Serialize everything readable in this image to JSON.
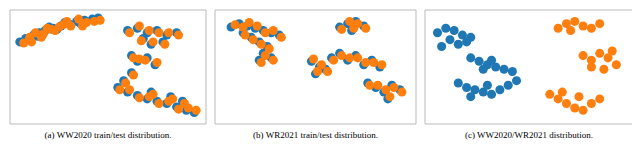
{
  "chart_data": [
    {
      "type": "scatter",
      "title": "(a) WW2020 train/test distribution.",
      "xlim": [
        0,
        100
      ],
      "ylim": [
        0,
        100
      ],
      "tick_labels": false,
      "series": [
        {
          "color": "#1f77b4",
          "values": [
            [
              5,
              72
            ],
            [
              8,
              75
            ],
            [
              12,
              78
            ],
            [
              15,
              80
            ],
            [
              18,
              82
            ],
            [
              22,
              84
            ],
            [
              26,
              86
            ],
            [
              30,
              88
            ],
            [
              34,
              90
            ],
            [
              38,
              91
            ],
            [
              42,
              92
            ],
            [
              45,
              93
            ],
            [
              10,
              74
            ],
            [
              20,
              85
            ],
            [
              28,
              89
            ],
            [
              36,
              88
            ],
            [
              14,
              77
            ],
            [
              24,
              83
            ],
            [
              60,
              82
            ],
            [
              65,
              84
            ],
            [
              70,
              80
            ],
            [
              75,
              82
            ],
            [
              80,
              78
            ],
            [
              85,
              80
            ],
            [
              68,
              75
            ],
            [
              72,
              70
            ],
            [
              78,
              72
            ],
            [
              62,
              60
            ],
            [
              65,
              55
            ],
            [
              70,
              58
            ],
            [
              74,
              52
            ],
            [
              55,
              32
            ],
            [
              60,
              28
            ],
            [
              65,
              25
            ],
            [
              70,
              22
            ],
            [
              75,
              20
            ],
            [
              80,
              18
            ],
            [
              85,
              15
            ],
            [
              90,
              12
            ],
            [
              94,
              10
            ],
            [
              58,
              38
            ],
            [
              62,
              45
            ],
            [
              72,
              28
            ],
            [
              82,
              24
            ],
            [
              88,
              20
            ]
          ]
        },
        {
          "color": "#ff7f0e",
          "values": [
            [
              7,
              71
            ],
            [
              10,
              76
            ],
            [
              13,
              80
            ],
            [
              17,
              79
            ],
            [
              19,
              84
            ],
            [
              23,
              82
            ],
            [
              27,
              87
            ],
            [
              31,
              86
            ],
            [
              35,
              92
            ],
            [
              39,
              89
            ],
            [
              43,
              90
            ],
            [
              46,
              91
            ],
            [
              11,
              72
            ],
            [
              21,
              83
            ],
            [
              29,
              90
            ],
            [
              37,
              86
            ],
            [
              16,
              76
            ],
            [
              25,
              85
            ],
            [
              61,
              80
            ],
            [
              66,
              86
            ],
            [
              71,
              82
            ],
            [
              76,
              80
            ],
            [
              81,
              80
            ],
            [
              86,
              78
            ],
            [
              67,
              73
            ],
            [
              73,
              72
            ],
            [
              79,
              70
            ],
            [
              63,
              58
            ],
            [
              66,
              57
            ],
            [
              69,
              56
            ],
            [
              75,
              54
            ],
            [
              56,
              30
            ],
            [
              61,
              30
            ],
            [
              66,
              23
            ],
            [
              71,
              24
            ],
            [
              76,
              18
            ],
            [
              81,
              20
            ],
            [
              86,
              13
            ],
            [
              91,
              14
            ],
            [
              95,
              12
            ],
            [
              59,
              36
            ],
            [
              63,
              43
            ],
            [
              73,
              26
            ],
            [
              83,
              22
            ],
            [
              89,
              18
            ]
          ]
        }
      ]
    },
    {
      "type": "scatter",
      "title": "(b) WR2021 train/test distribution.",
      "xlim": [
        0,
        100
      ],
      "ylim": [
        0,
        100
      ],
      "tick_labels": false,
      "series": [
        {
          "color": "#1f77b4",
          "values": [
            [
              8,
              85
            ],
            [
              12,
              88
            ],
            [
              16,
              86
            ],
            [
              20,
              84
            ],
            [
              24,
              82
            ],
            [
              28,
              80
            ],
            [
              32,
              78
            ],
            [
              14,
              80
            ],
            [
              18,
              76
            ],
            [
              22,
              72
            ],
            [
              26,
              68
            ],
            [
              24,
              62
            ],
            [
              22,
              56
            ],
            [
              28,
              58
            ],
            [
              48,
              55
            ],
            [
              52,
              50
            ],
            [
              50,
              44
            ],
            [
              55,
              48
            ],
            [
              62,
              85
            ],
            [
              66,
              88
            ],
            [
              70,
              90
            ],
            [
              74,
              86
            ],
            [
              68,
              82
            ],
            [
              58,
              58
            ],
            [
              62,
              62
            ],
            [
              66,
              56
            ],
            [
              70,
              60
            ],
            [
              74,
              52
            ],
            [
              78,
              56
            ],
            [
              82,
              50
            ],
            [
              76,
              36
            ],
            [
              80,
              32
            ],
            [
              84,
              28
            ],
            [
              88,
              34
            ],
            [
              92,
              30
            ],
            [
              86,
              22
            ]
          ]
        },
        {
          "color": "#ff7f0e",
          "values": [
            [
              10,
              87
            ],
            [
              14,
              85
            ],
            [
              17,
              89
            ],
            [
              21,
              86
            ],
            [
              25,
              80
            ],
            [
              29,
              82
            ],
            [
              33,
              76
            ],
            [
              15,
              78
            ],
            [
              19,
              74
            ],
            [
              23,
              70
            ],
            [
              27,
              66
            ],
            [
              25,
              60
            ],
            [
              23,
              54
            ],
            [
              29,
              56
            ],
            [
              49,
              57
            ],
            [
              53,
              52
            ],
            [
              51,
              46
            ],
            [
              56,
              46
            ],
            [
              63,
              83
            ],
            [
              67,
              90
            ],
            [
              71,
              88
            ],
            [
              75,
              84
            ],
            [
              69,
              84
            ],
            [
              59,
              56
            ],
            [
              63,
              60
            ],
            [
              67,
              58
            ],
            [
              71,
              58
            ],
            [
              75,
              54
            ],
            [
              79,
              54
            ],
            [
              83,
              52
            ],
            [
              77,
              34
            ],
            [
              81,
              34
            ],
            [
              85,
              30
            ],
            [
              89,
              32
            ],
            [
              93,
              28
            ],
            [
              87,
              24
            ]
          ]
        }
      ]
    },
    {
      "type": "scatter",
      "title": "(c) WW2020/WR2021 distribution.",
      "xlim": [
        0,
        100
      ],
      "ylim": [
        0,
        100
      ],
      "tick_labels": false,
      "series": [
        {
          "color": "#1f77b4",
          "values": [
            [
              6,
              80
            ],
            [
              10,
              84
            ],
            [
              14,
              82
            ],
            [
              18,
              78
            ],
            [
              22,
              76
            ],
            [
              12,
              74
            ],
            [
              16,
              70
            ],
            [
              8,
              68
            ],
            [
              20,
              72
            ],
            [
              22,
              58
            ],
            [
              26,
              55
            ],
            [
              30,
              52
            ],
            [
              34,
              50
            ],
            [
              38,
              48
            ],
            [
              42,
              46
            ],
            [
              28,
              48
            ],
            [
              32,
              56
            ],
            [
              16,
              36
            ],
            [
              20,
              32
            ],
            [
              24,
              30
            ],
            [
              28,
              28
            ],
            [
              32,
              26
            ],
            [
              36,
              30
            ],
            [
              40,
              34
            ],
            [
              44,
              38
            ],
            [
              22,
              24
            ],
            [
              30,
              34
            ]
          ]
        },
        {
          "color": "#ff7f0e",
          "values": [
            [
              64,
              84
            ],
            [
              68,
              88
            ],
            [
              72,
              90
            ],
            [
              76,
              86
            ],
            [
              80,
              84
            ],
            [
              84,
              88
            ],
            [
              70,
              82
            ],
            [
              76,
              60
            ],
            [
              80,
              56
            ],
            [
              84,
              62
            ],
            [
              88,
              58
            ],
            [
              92,
              52
            ],
            [
              86,
              48
            ],
            [
              80,
              50
            ],
            [
              90,
              64
            ],
            [
              60,
              26
            ],
            [
              64,
              22
            ],
            [
              68,
              18
            ],
            [
              72,
              14
            ],
            [
              76,
              12
            ],
            [
              80,
              18
            ],
            [
              84,
              22
            ],
            [
              66,
              28
            ],
            [
              74,
              24
            ]
          ]
        }
      ]
    }
  ]
}
